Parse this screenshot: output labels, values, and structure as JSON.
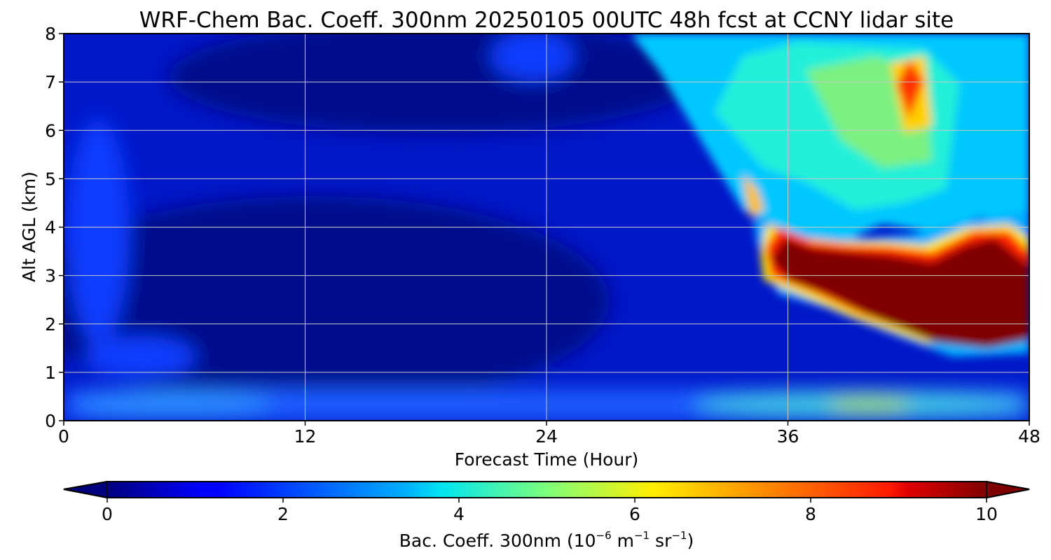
{
  "chart_data": {
    "type": "heatmap",
    "title": "WRF-Chem Bac. Coeff. 300nm  20250105 00UTC 48h fcst at CCNY lidar site",
    "xlabel": "Forecast Time (Hour)",
    "ylabel": "Alt AGL (km)",
    "xlim": [
      0,
      48
    ],
    "ylim": [
      0,
      8
    ],
    "xticks": [
      "0",
      "12",
      "24",
      "36",
      "48"
    ],
    "yticks": [
      "0",
      "1",
      "2",
      "3",
      "4",
      "5",
      "6",
      "7",
      "8"
    ],
    "grid": true,
    "colormap": "jet",
    "colorbar": {
      "label_text": "Bac. Coeff. 300nm",
      "unit_base": "10",
      "unit_exp": "−6",
      "unit_m": "m",
      "unit_m_exp": "−1",
      "unit_sr": "sr",
      "unit_sr_exp": "−1",
      "range": [
        0,
        10
      ],
      "ticks": [
        "0",
        "2",
        "4",
        "6",
        "8",
        "10"
      ],
      "extend": "both",
      "orientation": "horizontal",
      "placement": "bottom"
    },
    "features": [
      {
        "x": [
          33,
          48
        ],
        "y": [
          1.4,
          4.2
        ],
        "value": 10
      },
      {
        "x": [
          41,
          43
        ],
        "y": [
          6.4,
          7.3
        ],
        "value": 8
      },
      {
        "x": [
          26,
          48
        ],
        "y": [
          4.5,
          8
        ],
        "value": 4
      },
      {
        "x": [
          0,
          48
        ],
        "y": [
          0,
          0.7
        ],
        "value": 2.5
      }
    ]
  }
}
